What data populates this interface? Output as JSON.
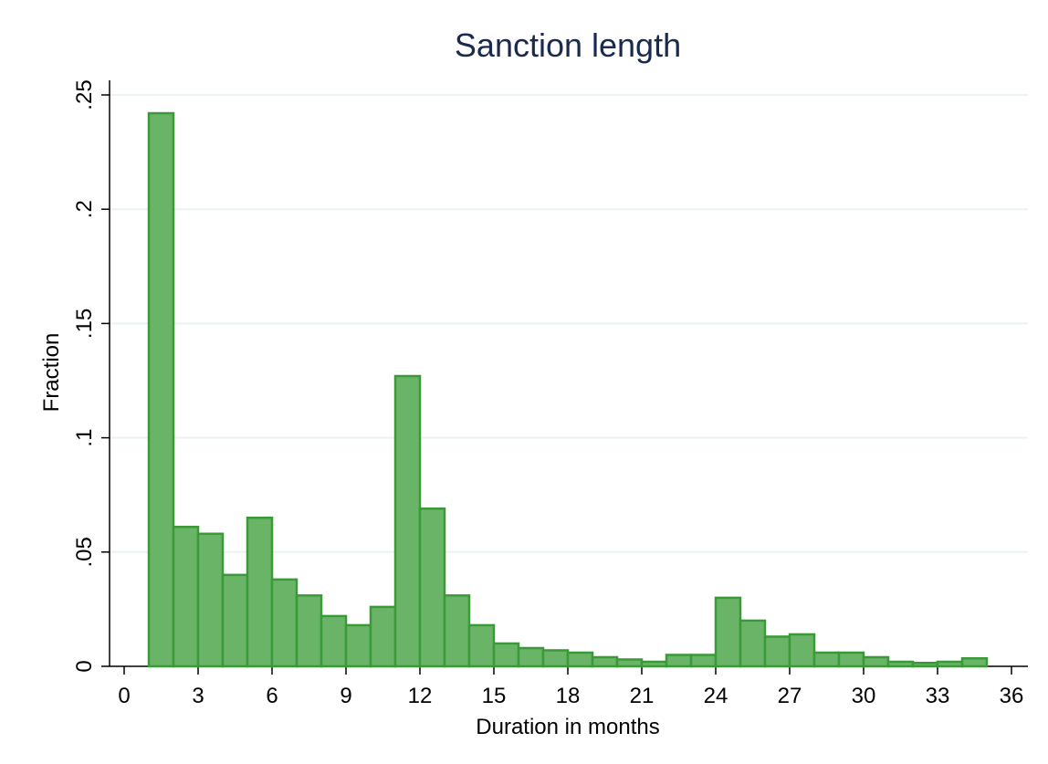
{
  "chart_data": {
    "type": "histogram",
    "title": "Sanction length",
    "xlabel": "Duration in months",
    "ylabel": "Fraction",
    "bins": [
      1,
      2,
      3,
      4,
      5,
      6,
      7,
      8,
      9,
      10,
      11,
      12,
      13,
      14,
      15,
      16,
      17,
      18,
      19,
      20,
      21,
      22,
      23,
      24,
      25,
      26,
      27,
      28,
      29,
      30,
      31,
      32,
      33,
      34,
      35
    ],
    "values": [
      0.242,
      0.061,
      0.058,
      0.04,
      0.065,
      0.038,
      0.031,
      0.022,
      0.018,
      0.026,
      0.127,
      0.069,
      0.031,
      0.018,
      0.01,
      0.008,
      0.007,
      0.006,
      0.004,
      0.003,
      0.002,
      0.005,
      0.005,
      0.03,
      0.02,
      0.013,
      0.014,
      0.006,
      0.006,
      0.004,
      0.002,
      0.0015,
      0.002,
      0.0035
    ],
    "color": "#6ab468",
    "edgecolor": "#3a9a38",
    "xlim": [
      0,
      36
    ],
    "ylim": [
      0,
      0.25
    ],
    "xticks": [
      0,
      3,
      6,
      9,
      12,
      15,
      18,
      21,
      24,
      27,
      30,
      33,
      36
    ],
    "yticks": [
      0,
      {
        "value": 0.05,
        "label": ".05"
      },
      {
        "value": 0.1,
        "label": ".1"
      },
      {
        "value": 0.15,
        "label": ".15"
      },
      {
        "value": 0.2,
        "label": ".2"
      },
      {
        "value": 0.25,
        "label": ".25"
      }
    ],
    "grid": true
  }
}
